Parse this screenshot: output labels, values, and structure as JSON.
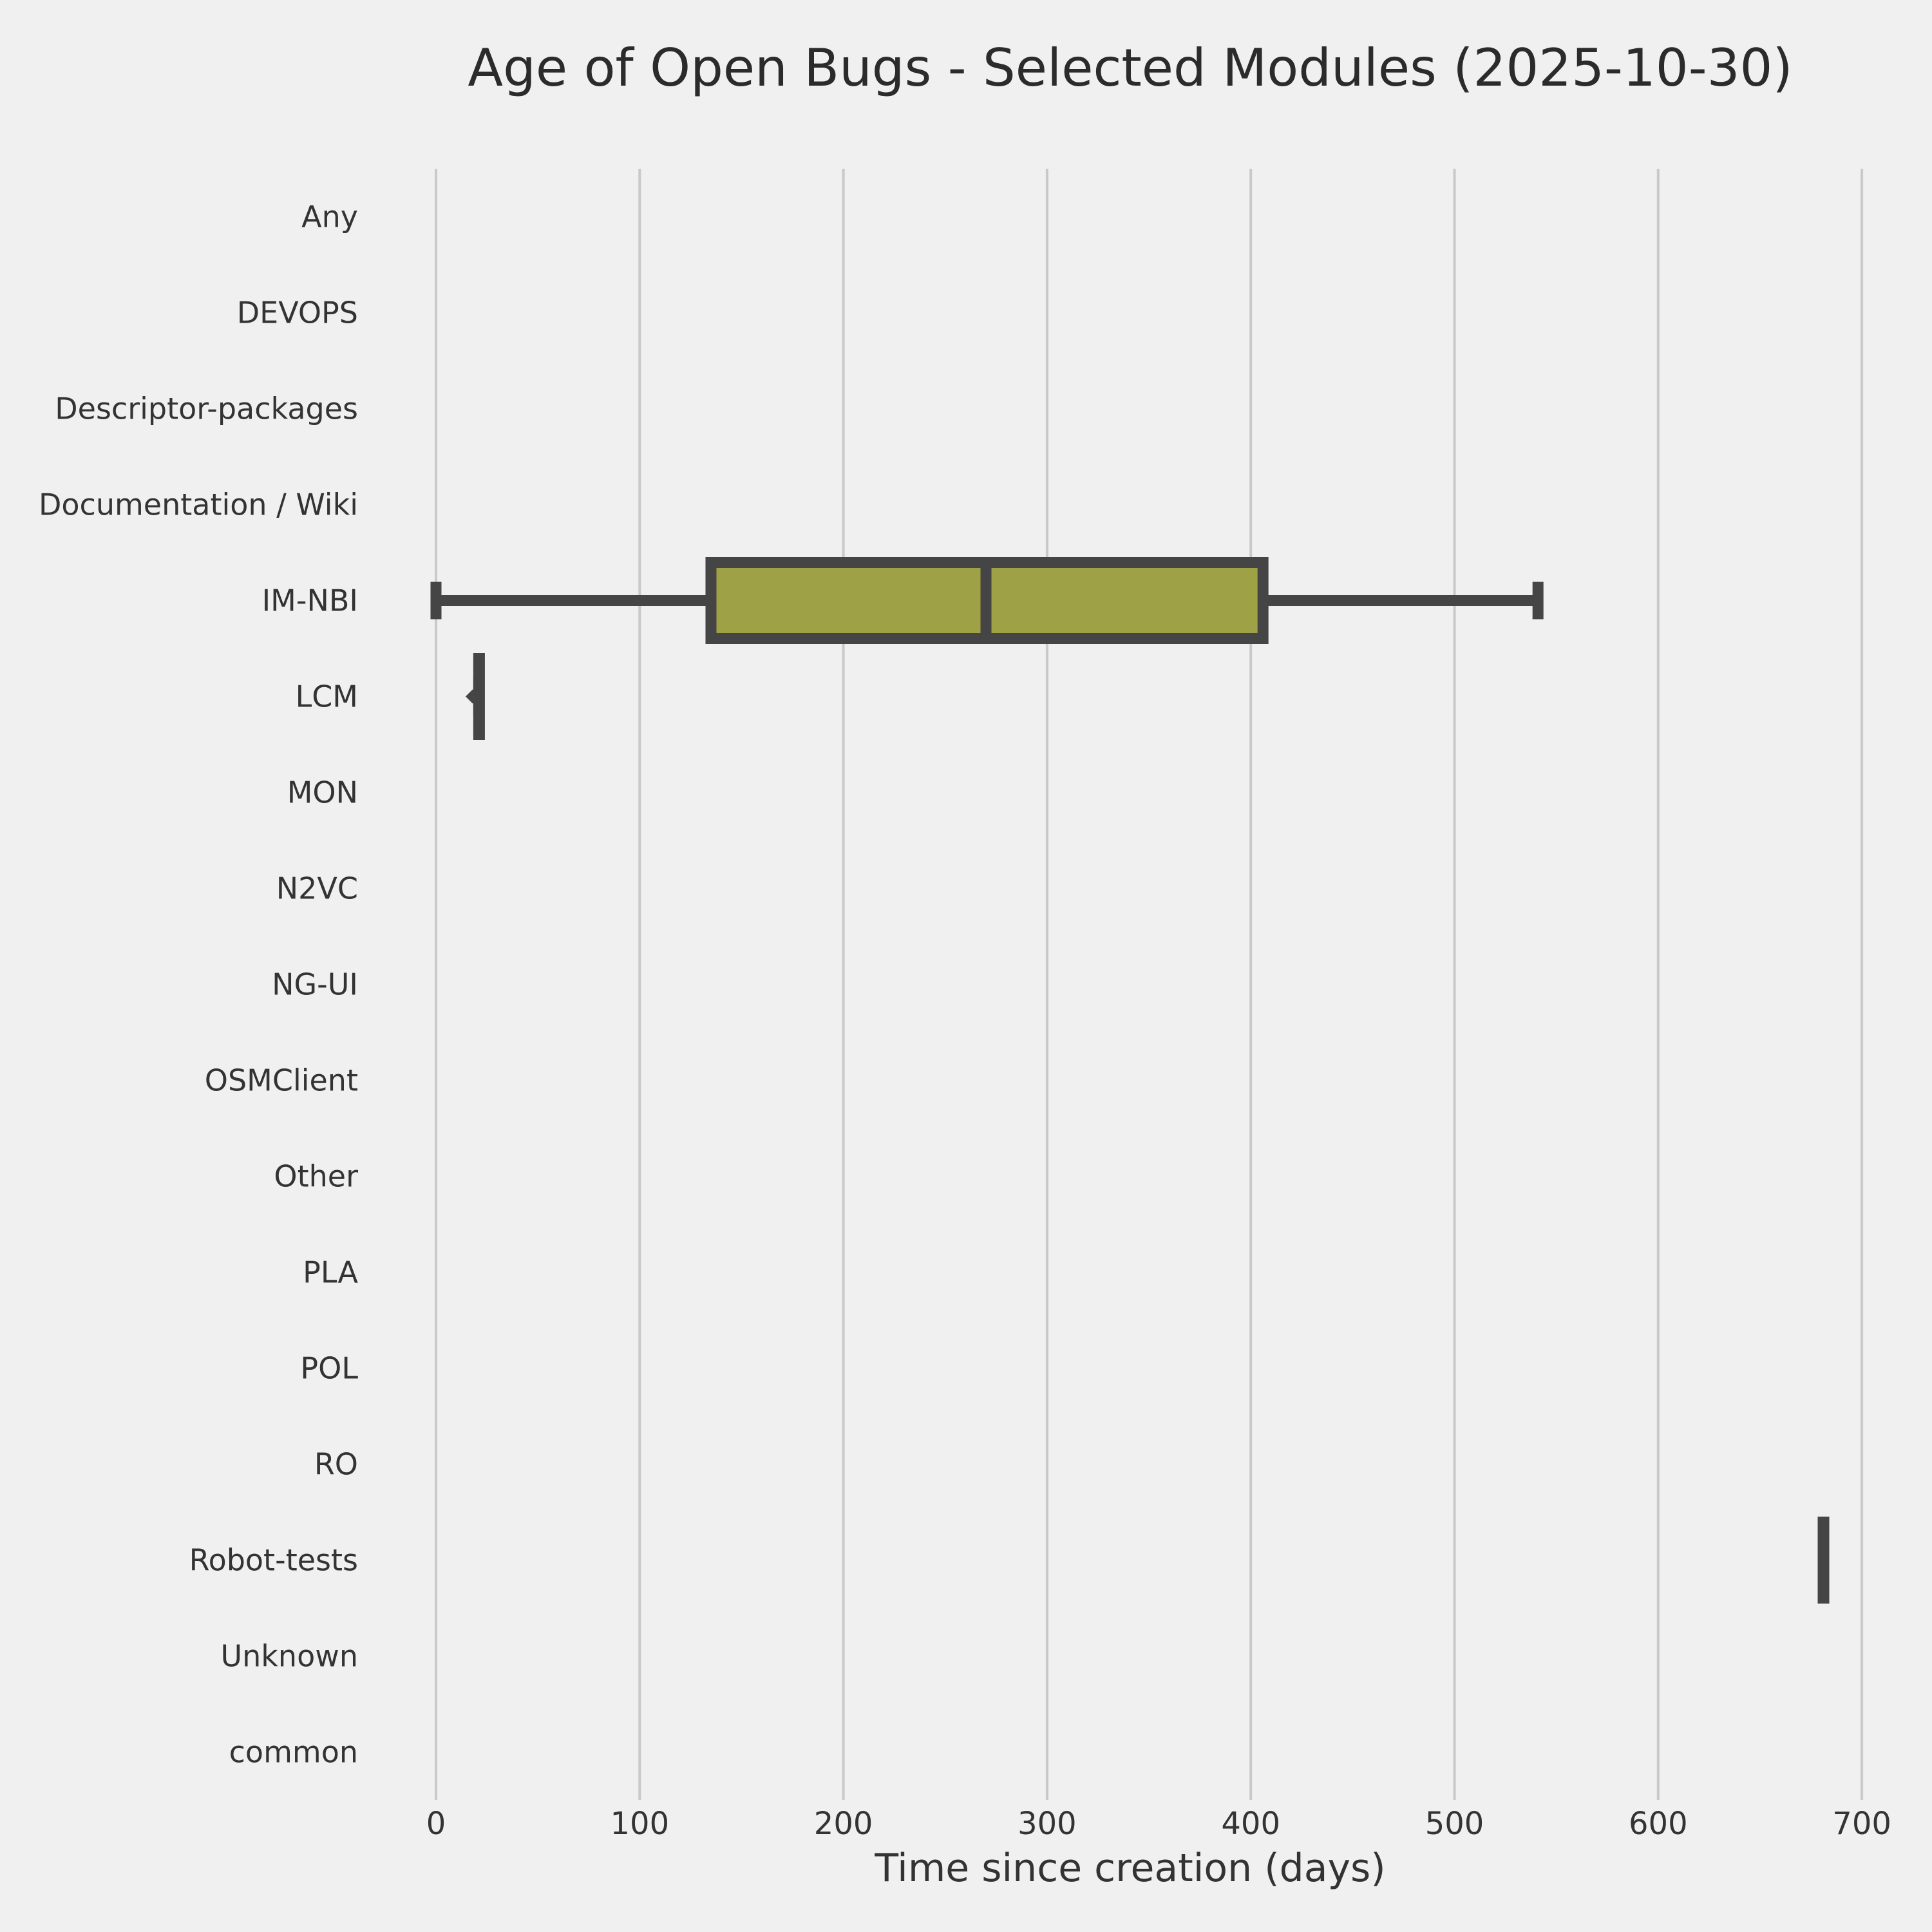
{
  "title": "Age of Open Bugs - Selected Modules (2025-10-30)",
  "chart_data": {
    "type": "boxplot",
    "orientation": "horizontal",
    "title": "Age of Open Bugs - Selected Modules (2025-10-30)",
    "xlabel": "Time since creation (days)",
    "ylabel": "",
    "xticks": [
      0,
      100,
      200,
      300,
      400,
      500,
      600,
      700
    ],
    "xlim": [
      -20,
      725
    ],
    "grid": "vertical-only",
    "legend": "none",
    "categories": [
      "Any",
      "DEVOPS",
      "Descriptor-packages",
      "Documentation / Wiki",
      "IM-NBI",
      "LCM",
      "MON",
      "N2VC",
      "NG-UI",
      "OSMClient",
      "Other",
      "PLA",
      "POL",
      "RO",
      "Robot-tests",
      "Unknown",
      "common"
    ],
    "series": [
      {
        "category": "IM-NBI",
        "min": 0,
        "q1": 135,
        "median": 270,
        "q3": 406,
        "max": 541,
        "fliers": []
      },
      {
        "category": "LCM",
        "min": 21,
        "q1": 21,
        "median": 21,
        "q3": 21,
        "max": 21,
        "fliers": [
          18
        ]
      },
      {
        "category": "Robot-tests",
        "min": 681,
        "q1": 681,
        "median": 681,
        "q3": 681,
        "max": 681,
        "fliers": []
      }
    ],
    "colors": {
      "background": "#f0f0f0",
      "grid": "#c9c9c9",
      "box_fill": "#9ea145",
      "line": "#454545",
      "text": "#333333",
      "title_text": "#2b2b2b"
    }
  }
}
